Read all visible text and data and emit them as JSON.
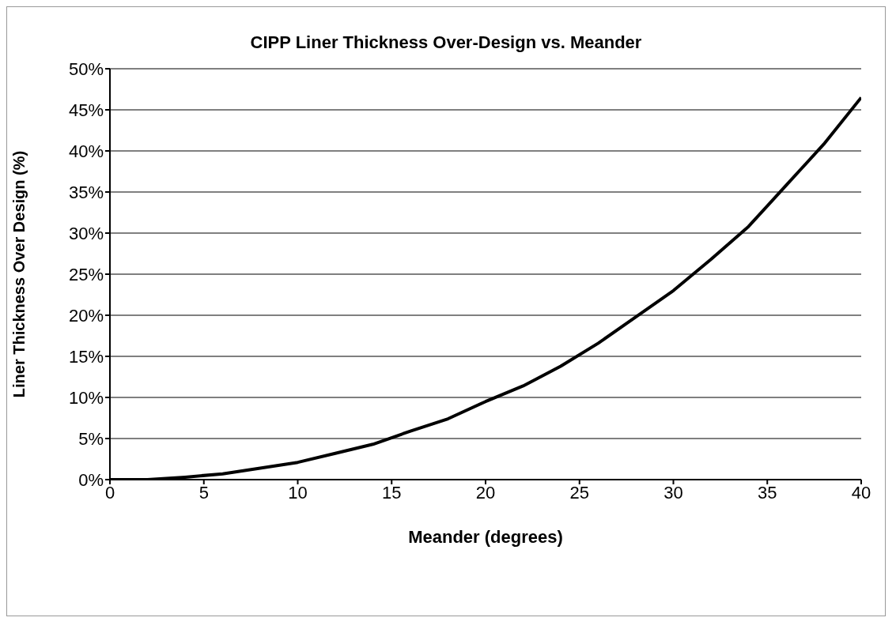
{
  "chart_data": {
    "type": "line",
    "title": "CIPP Liner Thickness Over-Design vs. Meander",
    "xlabel": "Meander (degrees)",
    "ylabel": "Liner Thickness Over Design (%)",
    "x": [
      0,
      2,
      4,
      6,
      8,
      10,
      12,
      14,
      16,
      18,
      20,
      22,
      24,
      26,
      28,
      30,
      32,
      34,
      36,
      38,
      40
    ],
    "series": [
      {
        "color": "#000000",
        "values": [
          0,
          0.0,
          0.3,
          0.7,
          1.4,
          2.1,
          3.2,
          4.3,
          5.9,
          7.4,
          9.5,
          11.4,
          13.8,
          16.6,
          19.8,
          23.0,
          26.8,
          30.8,
          35.8,
          40.8,
          46.5
        ]
      }
    ],
    "xlim": [
      0,
      40
    ],
    "xticks": [
      0,
      5,
      10,
      15,
      20,
      25,
      30,
      35,
      40
    ],
    "ylim": [
      0,
      50
    ],
    "yticks": [
      {
        "value": 0,
        "label": "0%"
      },
      {
        "value": 5,
        "label": "5%"
      },
      {
        "value": 10,
        "label": "10%"
      },
      {
        "value": 15,
        "label": "15%"
      },
      {
        "value": 20,
        "label": "20%"
      },
      {
        "value": 25,
        "label": "25%"
      },
      {
        "value": 30,
        "label": "30%"
      },
      {
        "value": 35,
        "label": "35%"
      },
      {
        "value": 40,
        "label": "40%"
      },
      {
        "value": 45,
        "label": "45%"
      },
      {
        "value": 50,
        "label": "50%"
      }
    ],
    "grid": "y",
    "marker": "none",
    "line_style": "solid",
    "legend": false
  }
}
